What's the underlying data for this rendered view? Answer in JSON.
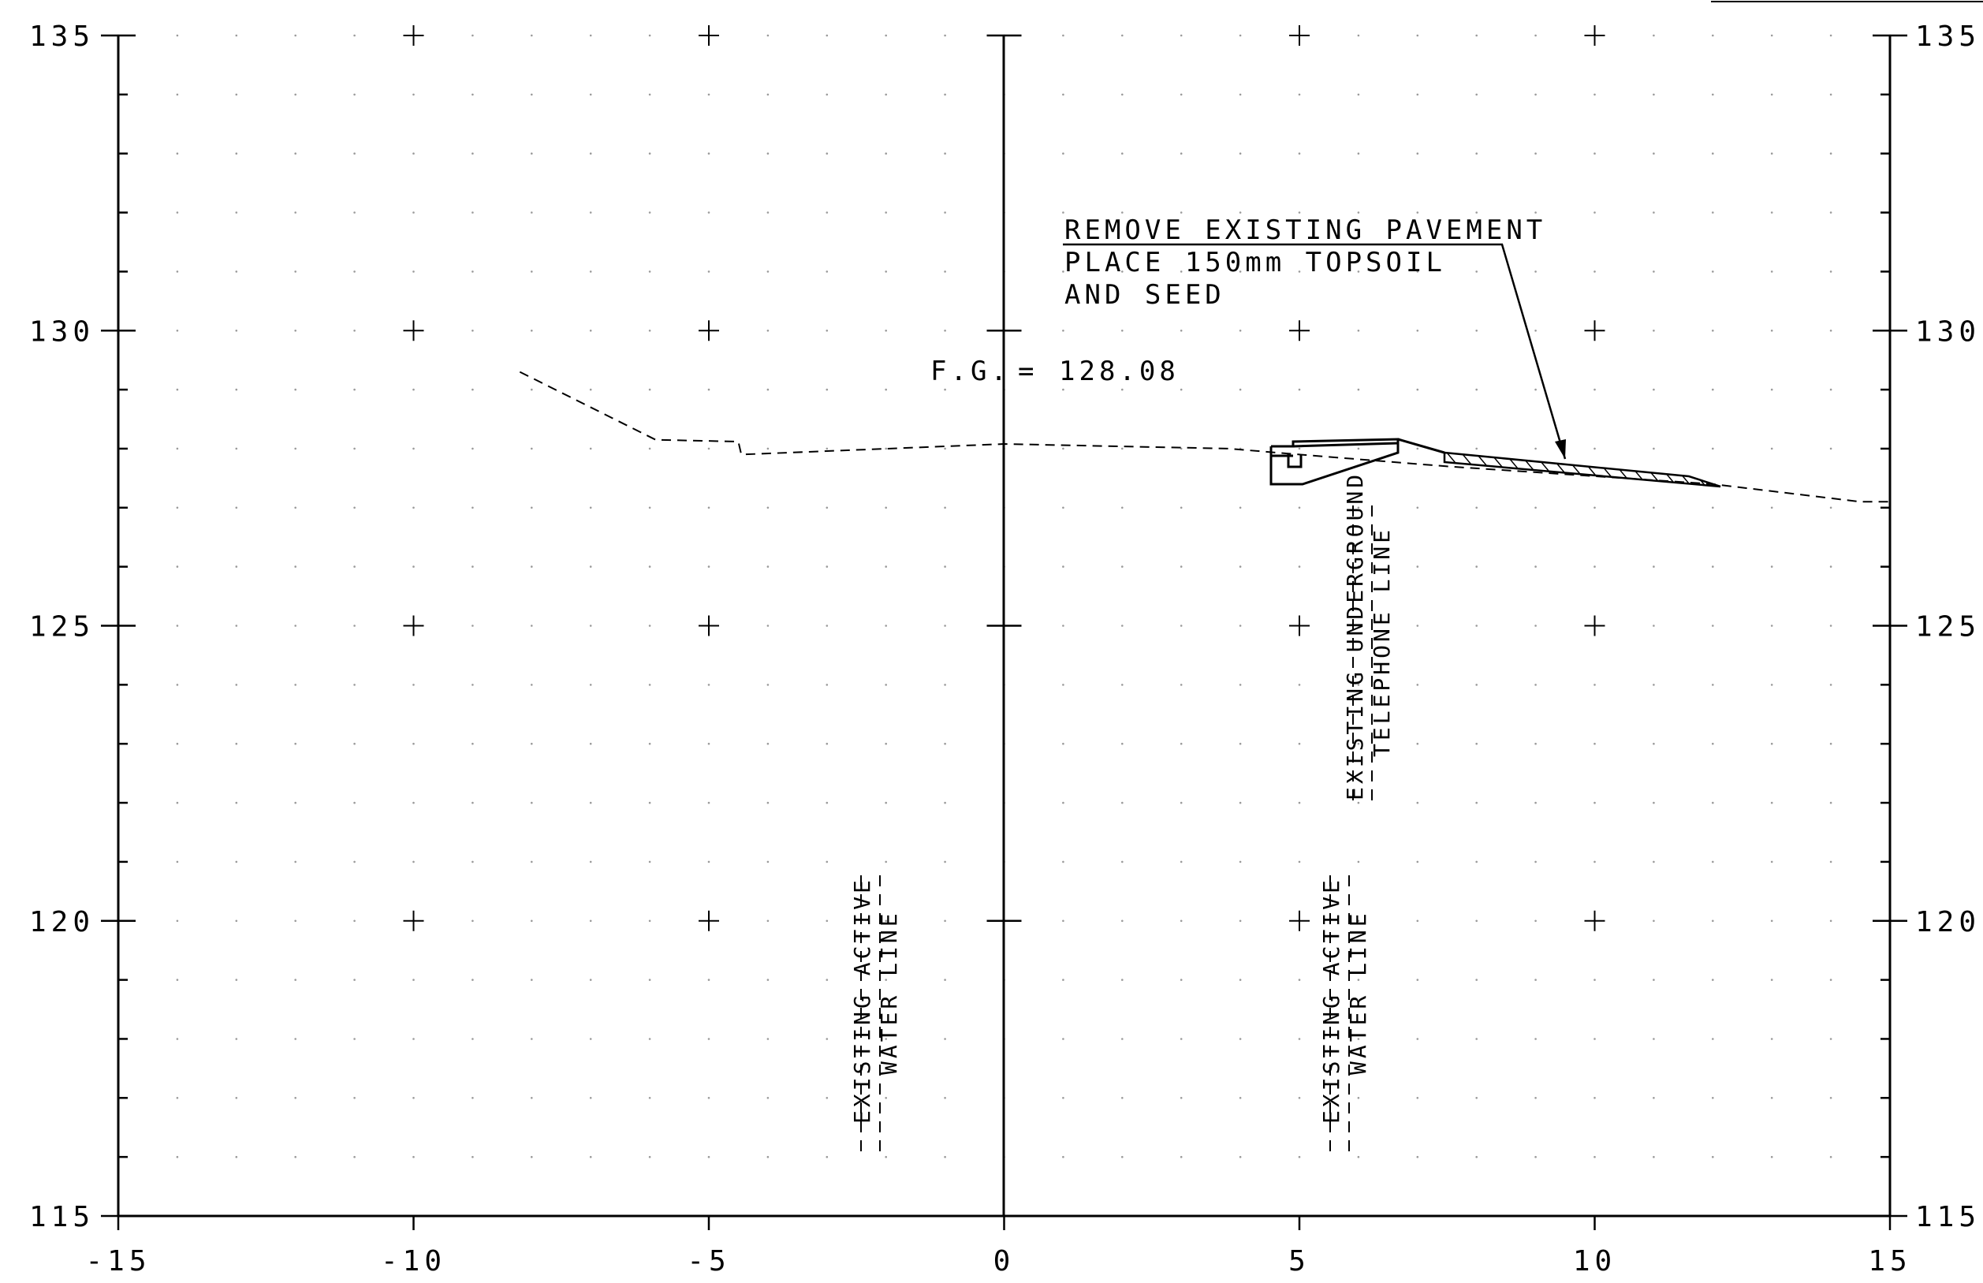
{
  "drawing": {
    "type": "cross-section",
    "x_axis": {
      "range": [
        -15,
        15
      ],
      "ticks": [
        -15,
        -10,
        -5,
        0,
        5,
        10,
        15
      ],
      "tick_labels": [
        "-15",
        "-10",
        "-5",
        "0",
        "5",
        "10",
        "15"
      ]
    },
    "y_axis": {
      "range": [
        115,
        135
      ],
      "ticks": [
        115,
        120,
        125,
        130,
        135
      ],
      "tick_labels": [
        "115",
        "120",
        "125",
        "130",
        "135"
      ],
      "labels_both_sides": true
    },
    "grid": "dotted",
    "existing_ground": [
      [
        -8.2,
        129.3
      ],
      [
        -5.9,
        128.15
      ],
      [
        -4.5,
        128.12
      ],
      [
        -4.45,
        127.9
      ],
      [
        0,
        128.08
      ],
      [
        3.8,
        128.0
      ],
      [
        5.0,
        127.9
      ],
      [
        7.5,
        127.7
      ],
      [
        12.0,
        127.4
      ],
      [
        14.5,
        127.1
      ],
      [
        15,
        127.1
      ]
    ],
    "annotations": {
      "pavement_note": [
        "REMOVE EXISTING PAVEMENT",
        "PLACE 150mm TOPSOIL",
        "AND SEED"
      ],
      "fg_label": "F.G.",
      "fg_equals": "=",
      "fg_value": "128.08",
      "water_line_1": [
        "EXISTING ACTIVE",
        "WATER LINE"
      ],
      "water_line_2": [
        "EXISTING ACTIVE",
        "WATER LINE"
      ],
      "telephone_line": [
        "EXISTING UNDERGROUND",
        "TELEPHONE LINE"
      ]
    }
  }
}
